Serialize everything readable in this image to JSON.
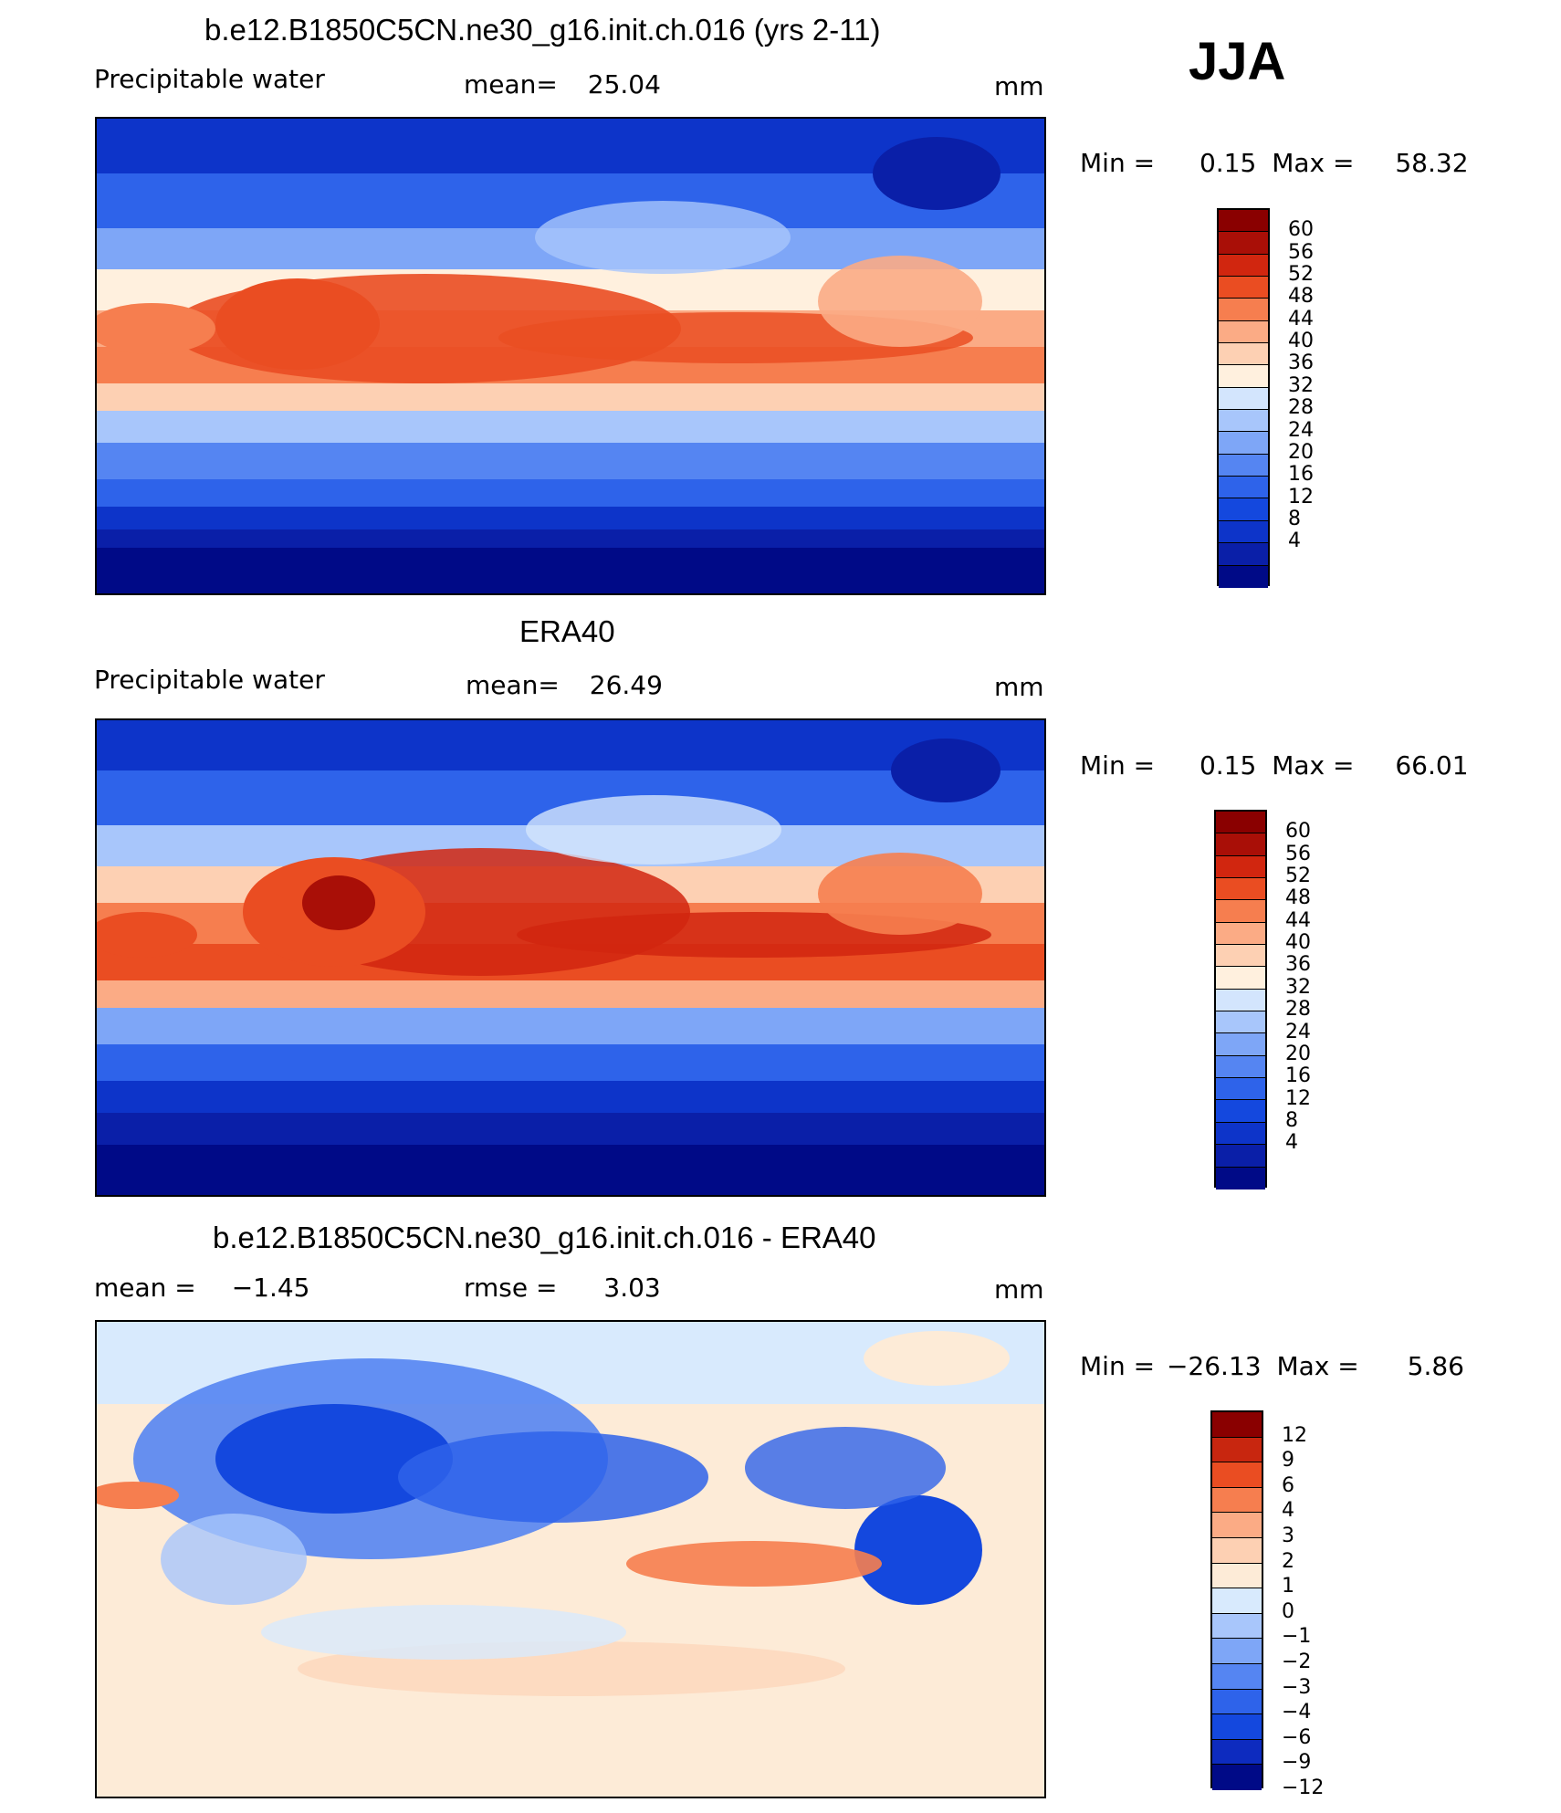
{
  "season": "JJA",
  "colors": {
    "abs_scale": [
      "#000a87",
      "#0a1fa8",
      "#0d34c9",
      "#1448de",
      "#2e63ea",
      "#5585f2",
      "#7ea6f7",
      "#a8c6fb",
      "#d3e5fd",
      "#fff0de",
      "#fdd0b3",
      "#fbab85",
      "#f67e4f",
      "#ea4d22",
      "#d1260f",
      "#a90f07",
      "#8a0000"
    ],
    "diff_scale": [
      "#000a87",
      "#0d2bbf",
      "#1448de",
      "#2e63ea",
      "#5585f2",
      "#7ea6f7",
      "#a8c6fb",
      "#d8eafd",
      "#fdebd7",
      "#fdd0b3",
      "#fbab85",
      "#f67e4f",
      "#ea4d22",
      "#c8260f",
      "#8a0000"
    ]
  },
  "panels": [
    {
      "title": "b.e12.B1850C5CN.ne30_g16.init.ch.016 (yrs 2-11)",
      "left_label": "Precipitable  water",
      "stat_label": "mean=",
      "stat_value": "25.04",
      "units": "mm",
      "min_label": "Min  =",
      "min_value": "0.15",
      "max_label": "Max  =",
      "max_value": "58.32",
      "colorbar_labels": [
        "60",
        "56",
        "52",
        "48",
        "44",
        "40",
        "36",
        "32",
        "28",
        "24",
        "20",
        "16",
        "12",
        "8",
        "4"
      ]
    },
    {
      "title": "ERA40",
      "left_label": "Precipitable  water",
      "stat_label": "mean=",
      "stat_value": "26.49",
      "units": "mm",
      "min_label": "Min  =",
      "min_value": "0.15",
      "max_label": "Max  =",
      "max_value": "66.01",
      "colorbar_labels": [
        "60",
        "56",
        "52",
        "48",
        "44",
        "40",
        "36",
        "32",
        "28",
        "24",
        "20",
        "16",
        "12",
        "8",
        "4"
      ]
    },
    {
      "title": "b.e12.B1850C5CN.ne30_g16.init.ch.016 - ERA40",
      "left_label": "mean  =",
      "left_value": "−1.45",
      "stat_label": "rmse  =",
      "stat_value": "3.03",
      "units": "mm",
      "min_label": "Min  =",
      "min_value": "−26.13",
      "max_label": "Max  =",
      "max_value": "5.86",
      "colorbar_labels": [
        "12",
        "9",
        "6",
        "4",
        "3",
        "2",
        "1",
        "0",
        "−1",
        "−2",
        "−3",
        "−4",
        "−6",
        "−9",
        "−12"
      ]
    }
  ]
}
